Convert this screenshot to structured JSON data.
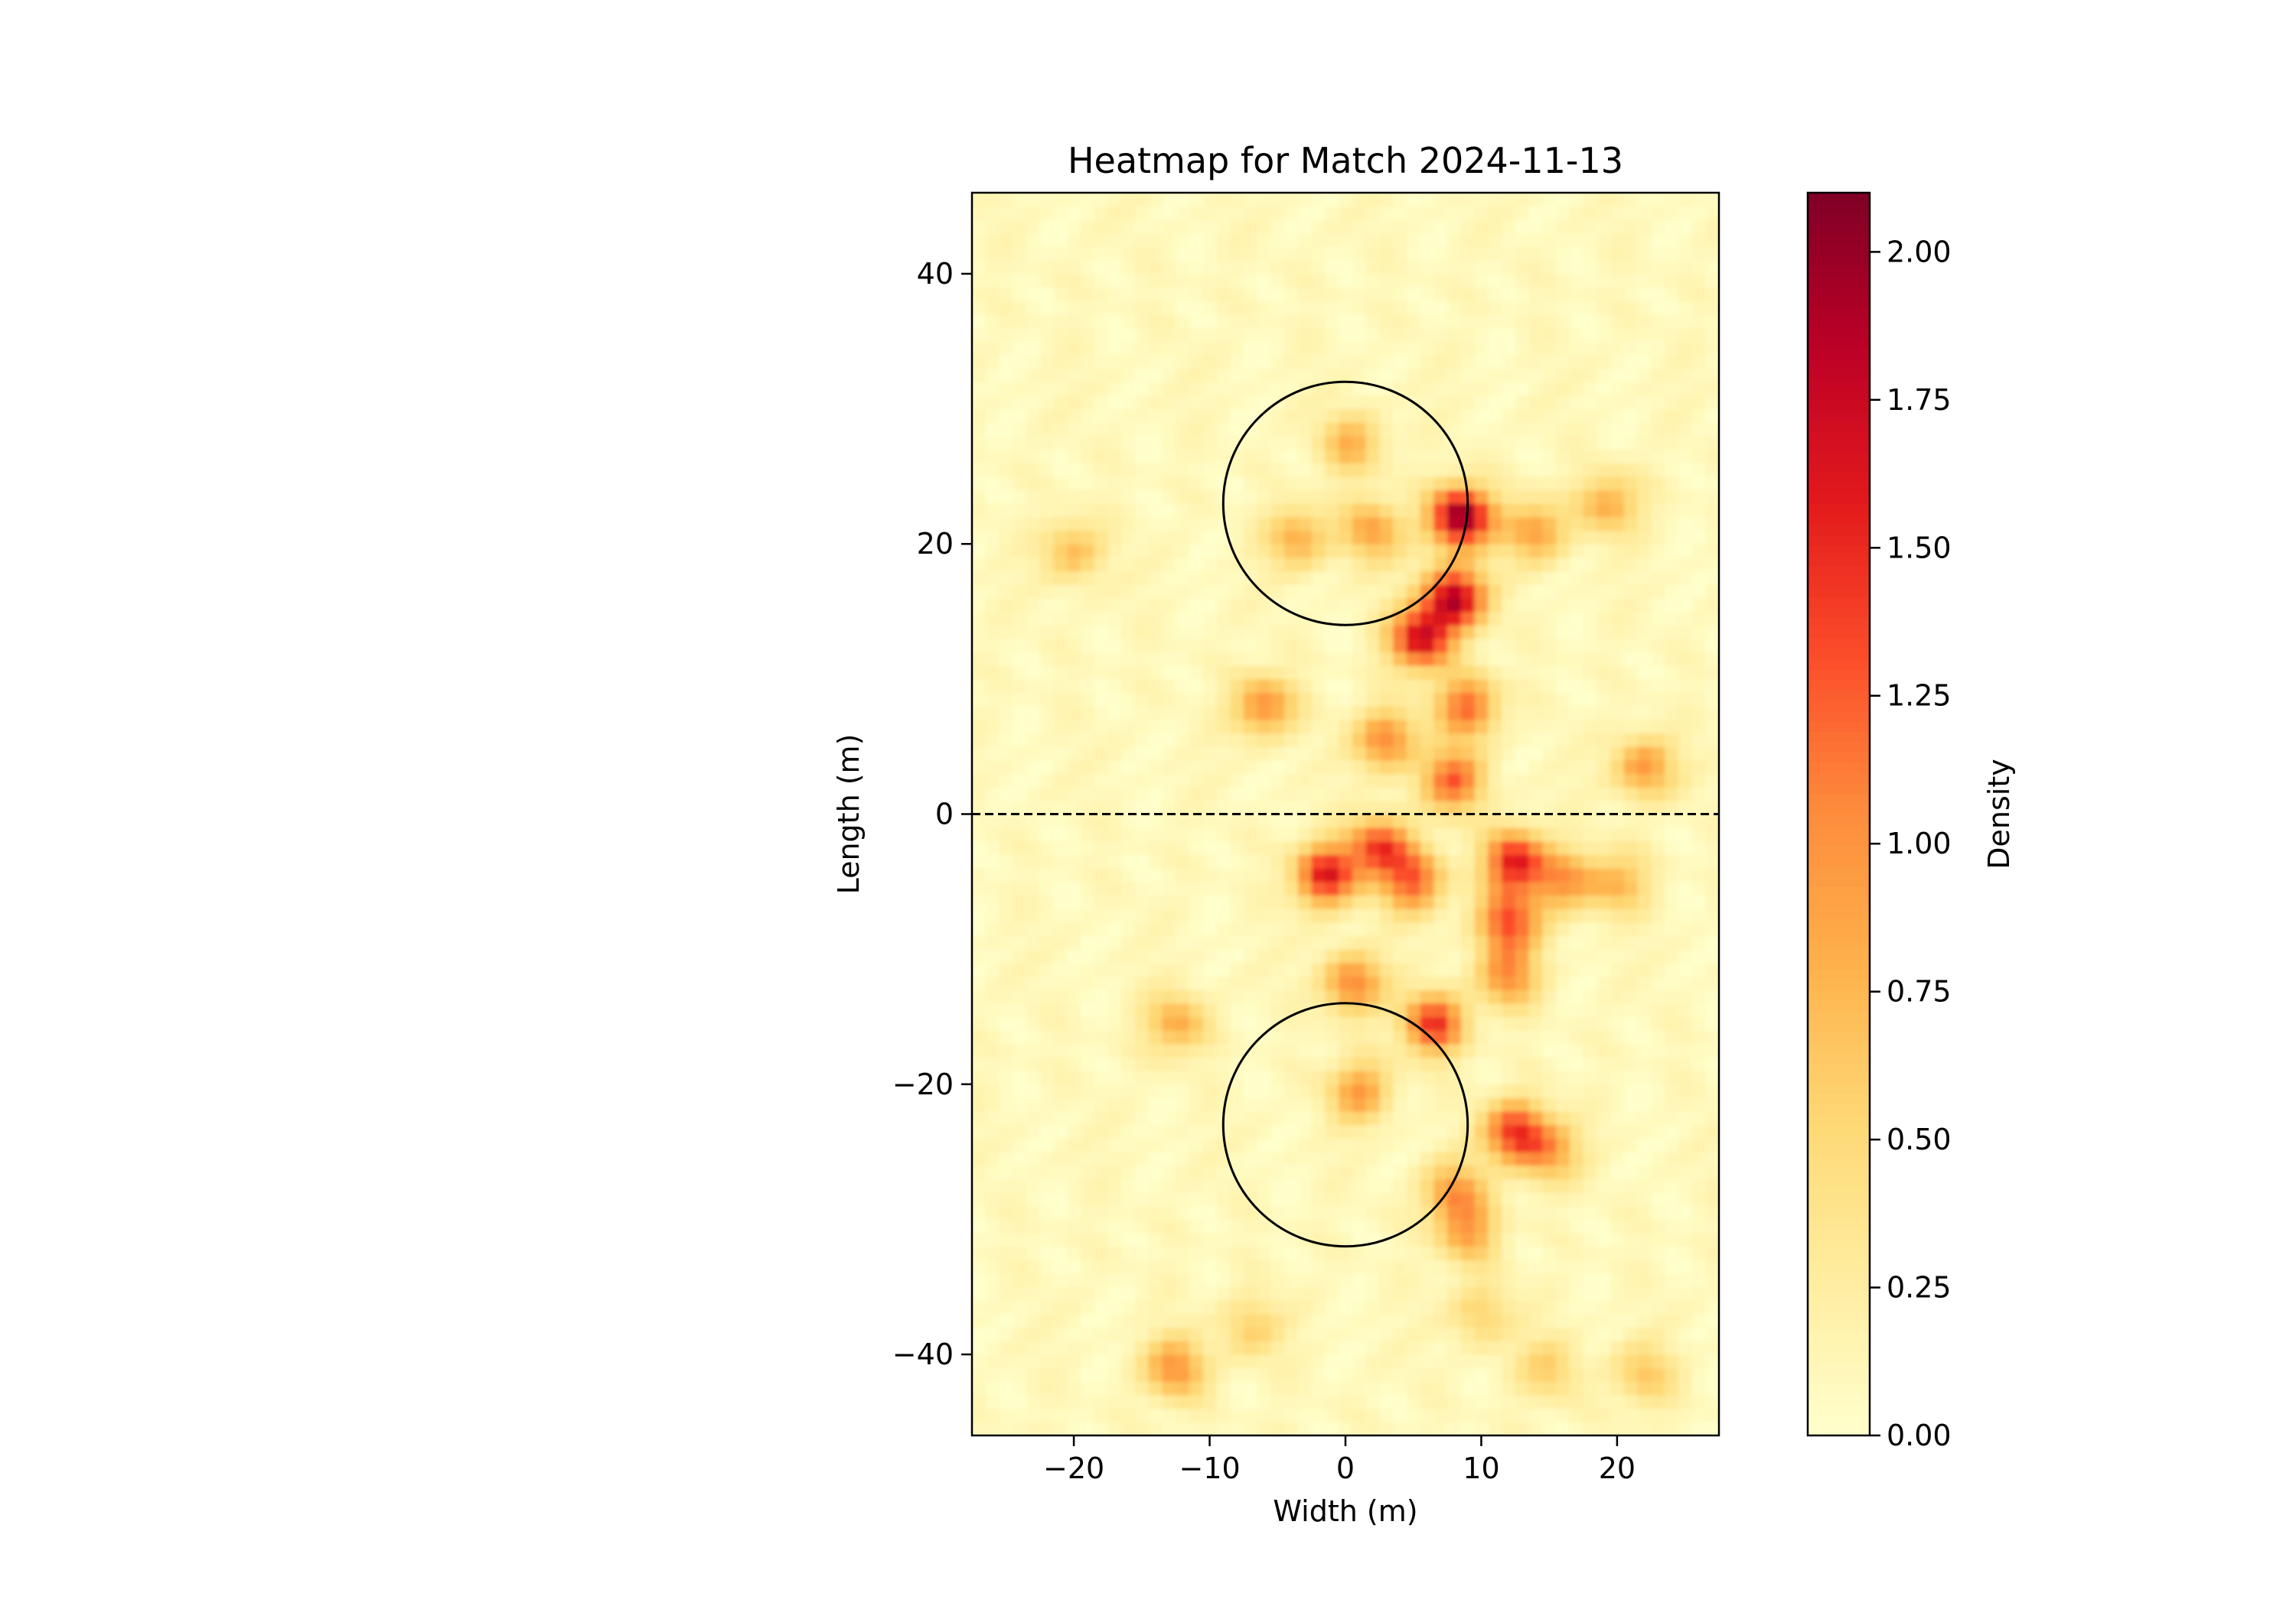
{
  "chart_data": {
    "type": "heatmap",
    "title": "Heatmap for Match 2024-11-13",
    "xlabel": "Width (m)",
    "ylabel": "Length (m)",
    "xlim": [
      -27.5,
      27.5
    ],
    "ylim": [
      -46,
      46
    ],
    "xticks": [
      -20,
      -10,
      0,
      10,
      20
    ],
    "xtick_labels": [
      "−20",
      "−10",
      "0",
      "10",
      "20"
    ],
    "yticks": [
      -40,
      -20,
      0,
      20,
      40
    ],
    "ytick_labels": [
      "−40",
      "−20",
      "0",
      "20",
      "40"
    ],
    "grid": false,
    "colormap": "YlOrRd",
    "colorbar": {
      "label": "Density",
      "range": [
        0,
        2.1
      ],
      "ticks": [
        0,
        0.25,
        0.5,
        0.75,
        1.0,
        1.25,
        1.5,
        1.75,
        2.0
      ],
      "tick_labels": [
        "0.00",
        "0.25",
        "0.50",
        "0.75",
        "1.00",
        "1.25",
        "1.50",
        "1.75",
        "2.00"
      ]
    },
    "colormap_stops": [
      "#ffffcc",
      "#ffeda0",
      "#fed976",
      "#feb24c",
      "#fd8d3c",
      "#fc4e2a",
      "#e31a1c",
      "#bd0026",
      "#800026"
    ],
    "overlays": {
      "halfway_line": {
        "y": 0,
        "style": "dashed"
      },
      "circles": [
        {
          "cx": 0,
          "cy": 23,
          "r": 9
        },
        {
          "cx": 0,
          "cy": -23,
          "r": 9
        }
      ]
    },
    "hotspots": [
      {
        "x": 8.5,
        "y": 22,
        "value": 2.0
      },
      {
        "x": 8,
        "y": 16,
        "value": 1.8
      },
      {
        "x": 5.5,
        "y": 13,
        "value": 1.6
      },
      {
        "x": 12.5,
        "y": -3.5,
        "value": 1.5
      },
      {
        "x": -1.5,
        "y": -4.5,
        "value": 1.5
      },
      {
        "x": 2.5,
        "y": -2.5,
        "value": 1.3
      },
      {
        "x": 12.5,
        "y": -23.5,
        "value": 1.35
      },
      {
        "x": 6.5,
        "y": -15.5,
        "value": 1.35
      },
      {
        "x": 12,
        "y": -8,
        "value": 1.2
      },
      {
        "x": 8,
        "y": 2.5,
        "value": 1.15
      },
      {
        "x": 9,
        "y": 8,
        "value": 1.1
      },
      {
        "x": 3,
        "y": 5.5,
        "value": 1.0
      },
      {
        "x": -6,
        "y": 8,
        "value": 0.95
      },
      {
        "x": 22,
        "y": 3.5,
        "value": 0.9
      },
      {
        "x": 0.5,
        "y": -12.5,
        "value": 1.0
      },
      {
        "x": 1,
        "y": -20.5,
        "value": 0.85
      },
      {
        "x": -3.5,
        "y": 20.5,
        "value": 0.75
      },
      {
        "x": 2,
        "y": 21,
        "value": 0.8
      },
      {
        "x": 14,
        "y": 21,
        "value": 0.85
      },
      {
        "x": 19.5,
        "y": 23,
        "value": 0.75
      },
      {
        "x": 0.5,
        "y": 27.5,
        "value": 0.7
      },
      {
        "x": -20,
        "y": 19.5,
        "value": 0.65
      },
      {
        "x": -12.5,
        "y": -41,
        "value": 0.9
      },
      {
        "x": 8,
        "y": -28,
        "value": 0.85
      },
      {
        "x": 9,
        "y": -31,
        "value": 0.75
      },
      {
        "x": 15,
        "y": -25,
        "value": 0.75
      },
      {
        "x": 22,
        "y": -41.5,
        "value": 0.55
      },
      {
        "x": 16,
        "y": -5,
        "value": 0.8
      },
      {
        "x": 20,
        "y": -5,
        "value": 0.7
      },
      {
        "x": 5,
        "y": -5,
        "value": 1.1
      },
      {
        "x": -12.5,
        "y": -15.5,
        "value": 0.75
      },
      {
        "x": 12,
        "y": -12,
        "value": 0.9
      },
      {
        "x": -7,
        "y": -38,
        "value": 0.5
      },
      {
        "x": 15,
        "y": -41,
        "value": 0.5
      },
      {
        "x": 10,
        "y": -37,
        "value": 0.5
      }
    ]
  }
}
